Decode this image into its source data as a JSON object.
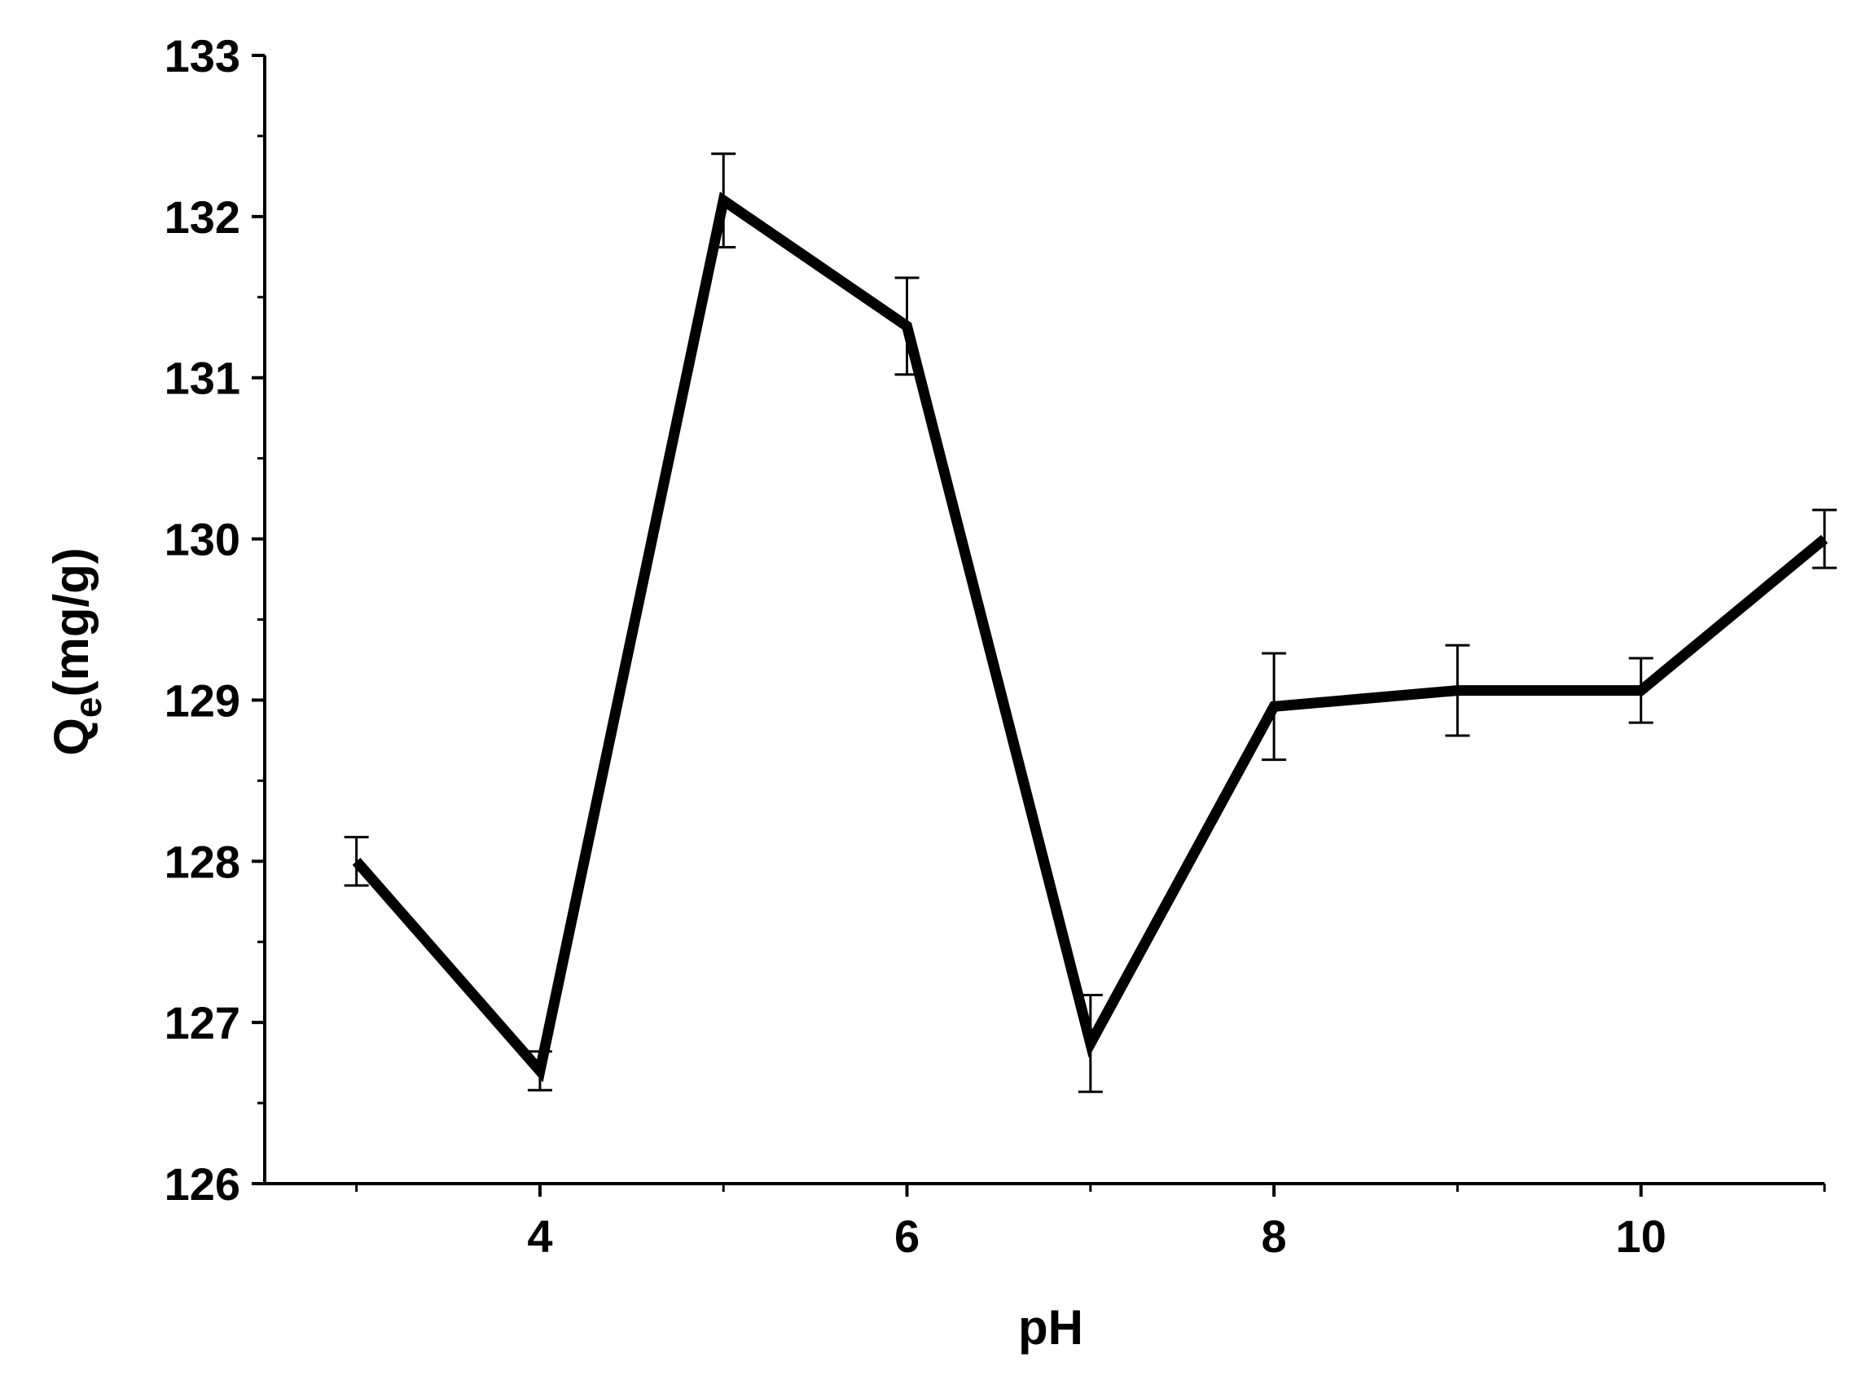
{
  "chart_data": {
    "type": "line",
    "title": "",
    "xlabel": "pH",
    "ylabel": {
      "main": "Q",
      "subscript": "e",
      "unit": "(mg/g)"
    },
    "xlim": [
      2.5,
      11
    ],
    "ylim": [
      126,
      133
    ],
    "x_ticks": [
      4,
      6,
      8,
      10
    ],
    "x_tick_labels": [
      "4",
      "6",
      "8",
      "10"
    ],
    "x_minor_ticks": [
      3,
      5,
      7,
      9,
      11
    ],
    "y_ticks": [
      126,
      127,
      128,
      129,
      130,
      131,
      132,
      133
    ],
    "y_tick_labels": [
      "126",
      "127",
      "128",
      "129",
      "130",
      "131",
      "132",
      "133"
    ],
    "grid": false,
    "legend": "none",
    "line_color": "#000000",
    "series": [
      {
        "x": [
          3,
          4,
          5,
          6,
          7,
          8,
          9,
          10,
          11
        ],
        "y": [
          128.0,
          126.7,
          132.1,
          131.32,
          126.87,
          128.96,
          129.06,
          129.06,
          130.0
        ],
        "error": [
          0.15,
          0.12,
          0.29,
          0.3,
          0.3,
          0.33,
          0.28,
          0.2,
          0.18
        ]
      }
    ]
  }
}
